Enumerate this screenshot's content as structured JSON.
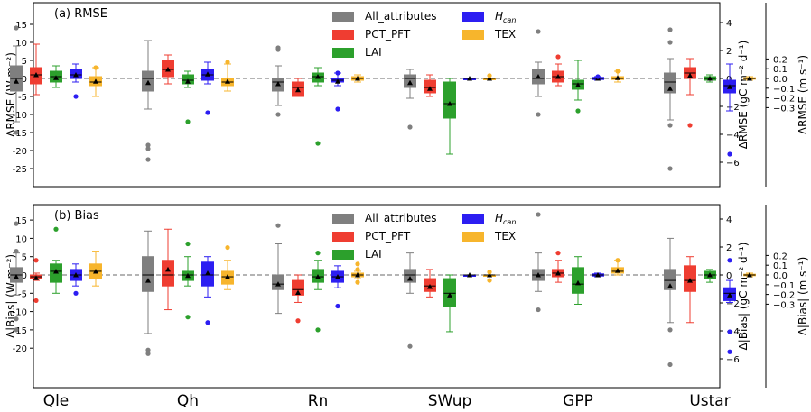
{
  "chart_data": [
    {
      "type": "box",
      "panel_title": "(a) RMSE",
      "ylabel": "ΔRMSE (W m⁻²)",
      "ylabel_right1": "ΔRMSE (gC m⁻² d⁻¹)",
      "ylabel_right2": "ΔRMSE (m s⁻¹)",
      "ylim": [
        -27.5,
        17
      ],
      "yticks": [
        "15",
        "10",
        "5",
        "0",
        "-5",
        "-10",
        "-15",
        "-20",
        "-25"
      ],
      "right1_ticks": [
        "4",
        "2",
        "0",
        "−2",
        "−4",
        "−6"
      ],
      "right2_ticks": [
        "0.2",
        "0.1",
        "0.0",
        "−0.1",
        "−0.2",
        "−0.3"
      ],
      "legend": {
        "placement": "top-center",
        "entries": [
          "All_attributes",
          "PCT_PFT",
          "LAI",
          "H_can",
          "TEX"
        ]
      },
      "series": [
        {
          "name": "All_attributes",
          "color": "#7f7f7f",
          "boxes": [
            {
              "category": "Qle",
              "q1": -3.5,
              "median": 0,
              "q3": 3.5,
              "wlo": -12,
              "whi": 9,
              "mean": -0.8,
              "outliers": [
                14,
                -15
              ]
            },
            {
              "category": "Qh",
              "q1": -3.5,
              "median": 0,
              "q3": 2,
              "wlo": -8.5,
              "whi": 10.5,
              "mean": -1.2,
              "outliers": [
                -18.5,
                -19.5,
                -22.5
              ]
            },
            {
              "category": "Rn",
              "q1": -3.5,
              "median": -1,
              "q3": 0,
              "wlo": -7.5,
              "whi": 3.5,
              "mean": -1.5,
              "outliers": [
                8.5,
                8,
                -10
              ]
            },
            {
              "category": "SWup",
              "q1": -2.5,
              "median": 0,
              "q3": 1,
              "wlo": -5.5,
              "whi": 2.5,
              "mean": -1.2,
              "outliers": [
                -13.5
              ]
            },
            {
              "category": "GPP",
              "q1": -1.5,
              "median": 0,
              "q3": 2.5,
              "wlo": -5,
              "whi": 4.5,
              "mean": 0.5,
              "outliers": [
                13,
                -10
              ]
            },
            {
              "category": "Ustar",
              "q1": -4,
              "median": -1,
              "q3": 1.5,
              "wlo": -11.5,
              "whi": 5.5,
              "mean": -2.8,
              "outliers": [
                13.5,
                10,
                -13,
                -25
              ]
            }
          ]
        },
        {
          "name": "PCT_PFT",
          "color": "#ef3d31",
          "boxes": [
            {
              "category": "Qle",
              "q1": -1.5,
              "median": 1,
              "q3": 3,
              "wlo": -4.5,
              "whi": 9.5,
              "mean": 1
            },
            {
              "category": "Qh",
              "q1": 0.5,
              "median": 2.5,
              "q3": 5,
              "wlo": -1.5,
              "whi": 6.5,
              "mean": 2.5
            },
            {
              "category": "Rn",
              "q1": -5,
              "median": -2.5,
              "q3": -1,
              "wlo": -5,
              "whi": 0,
              "mean": -3.2
            },
            {
              "category": "SWup",
              "q1": -4,
              "median": -2.5,
              "q3": -0.5,
              "wlo": -5,
              "whi": 1,
              "mean": -2.8
            },
            {
              "category": "GPP",
              "q1": -1,
              "median": 0.5,
              "q3": 2,
              "wlo": -2,
              "whi": 4,
              "mean": 0.5,
              "outliers": [
                6
              ]
            },
            {
              "category": "Ustar",
              "q1": 0,
              "median": 1.5,
              "q3": 3,
              "wlo": -4.5,
              "whi": 5.5,
              "mean": 0.8,
              "outliers": [
                -13
              ]
            }
          ]
        },
        {
          "name": "LAI",
          "color": "#2ca02c",
          "boxes": [
            {
              "category": "Qle",
              "q1": -1,
              "median": 0.5,
              "q3": 2,
              "wlo": -2.5,
              "whi": 3.5,
              "mean": 0.2
            },
            {
              "category": "Qh",
              "q1": -1.5,
              "median": -0.5,
              "q3": 1,
              "wlo": -2.5,
              "whi": 2,
              "mean": -0.8,
              "outliers": [
                -12
              ]
            },
            {
              "category": "Rn",
              "q1": -1,
              "median": 0.5,
              "q3": 1.5,
              "wlo": -2,
              "whi": 3,
              "mean": 0.5,
              "outliers": [
                -18
              ]
            },
            {
              "category": "SWup",
              "q1": -11,
              "median": -7,
              "q3": -1,
              "wlo": -21,
              "whi": 0,
              "mean": -7
            },
            {
              "category": "GPP",
              "q1": -3,
              "median": -1.5,
              "q3": -0.5,
              "wlo": -6,
              "whi": 5,
              "mean": -1.8,
              "outliers": [
                -9
              ]
            },
            {
              "category": "Ustar",
              "q1": -0.5,
              "median": 0,
              "q3": 0.5,
              "wlo": -1,
              "whi": 1,
              "mean": 0
            }
          ]
        },
        {
          "name": "H_can",
          "color": "#2c1ef2",
          "boxes": [
            {
              "category": "Qle",
              "q1": 0,
              "median": 1,
              "q3": 2.5,
              "wlo": -1,
              "whi": 4,
              "mean": 1,
              "outliers": [
                -5
              ]
            },
            {
              "category": "Qh",
              "q1": -0.5,
              "median": 1,
              "q3": 2.5,
              "wlo": -1.5,
              "whi": 4.5,
              "mean": 1.2,
              "outliers": [
                -9.5
              ]
            },
            {
              "category": "Rn",
              "q1": -1,
              "median": -0.5,
              "q3": 0,
              "wlo": -2,
              "whi": 1.5,
              "mean": -0.8,
              "outliers": [
                1.5,
                -8.5
              ]
            },
            {
              "category": "SWup",
              "q1": 0,
              "median": 0,
              "q3": 0,
              "wlo": 0,
              "whi": 0,
              "mean": 0
            },
            {
              "category": "GPP",
              "q1": -0.3,
              "median": 0,
              "q3": 0.3,
              "wlo": -0.5,
              "whi": 0.5,
              "mean": 0,
              "outliers": [
                0.5
              ]
            },
            {
              "category": "Ustar",
              "q1": -4,
              "median": -2,
              "q3": -0.5,
              "wlo": -9,
              "whi": 4,
              "mean": -2.3,
              "outliers": [
                -21
              ]
            }
          ]
        },
        {
          "name": "TEX",
          "color": "#f7b52c",
          "boxes": [
            {
              "category": "Qle",
              "q1": -2,
              "median": -1,
              "q3": 0.5,
              "wlo": -5,
              "whi": 3,
              "mean": -0.8,
              "outliers": [
                3
              ]
            },
            {
              "category": "Qh",
              "q1": -2,
              "median": -1,
              "q3": 0,
              "wlo": -3.5,
              "whi": 4,
              "mean": -0.8,
              "outliers": [
                4.5
              ]
            },
            {
              "category": "Rn",
              "q1": -0.5,
              "median": 0,
              "q3": 0.5,
              "wlo": -1,
              "whi": 1,
              "mean": 0
            },
            {
              "category": "SWup",
              "q1": 0,
              "median": 0,
              "q3": 0,
              "wlo": 0,
              "whi": 0,
              "mean": 0,
              "outliers": [
                0.8
              ]
            },
            {
              "category": "GPP",
              "q1": -0.3,
              "median": 0,
              "q3": 0.5,
              "wlo": -1,
              "whi": 2,
              "mean": 0.2,
              "outliers": [
                2
              ]
            },
            {
              "category": "Ustar",
              "q1": -0.2,
              "median": 0,
              "q3": 0.2,
              "wlo": -0.5,
              "whi": 0.5,
              "mean": 0
            }
          ]
        }
      ]
    },
    {
      "type": "box",
      "panel_title": "(b) Bias",
      "ylabel": "Δ|Bias| (W m⁻²)",
      "ylabel_right1": "Δ|Bias| (gC m⁻² d⁻¹)",
      "ylabel_right2": "Δ|Bias| (m s⁻¹)",
      "ylim": [
        -23.5,
        17
      ],
      "yticks": [
        "15",
        "10",
        "5",
        "0",
        "-5",
        "-10",
        "-15",
        "-20"
      ],
      "right1_ticks": [
        "4",
        "2",
        "0",
        "−2",
        "−4",
        "−6"
      ],
      "right2_ticks": [
        "0.2",
        "0.1",
        "0.0",
        "−0.1",
        "−0.2",
        "−0.3"
      ],
      "legend": {
        "placement": "top-center",
        "entries": [
          "All_attributes",
          "PCT_PFT",
          "LAI",
          "H_can",
          "TEX"
        ]
      },
      "series": [
        {
          "name": "All_attributes",
          "color": "#7f7f7f",
          "boxes": [
            {
              "category": "Qle",
              "q1": -2,
              "median": 0,
              "q3": 2,
              "wlo": -5.5,
              "whi": 6,
              "mean": -0.5,
              "outliers": [
                14,
                6.5,
                -12,
                -15
              ]
            },
            {
              "category": "Qh",
              "q1": -4.5,
              "median": 0,
              "q3": 5,
              "wlo": -16,
              "whi": 12,
              "mean": -1.5,
              "outliers": [
                -20.5,
                -21.5
              ]
            },
            {
              "category": "Rn",
              "q1": -4,
              "median": -2.5,
              "q3": 0,
              "wlo": -10.5,
              "whi": 8.5,
              "mean": -2.5,
              "outliers": [
                13.5
              ]
            },
            {
              "category": "SWup",
              "q1": -2,
              "median": 0,
              "q3": 1.5,
              "wlo": -5,
              "whi": 6,
              "mean": -1,
              "outliers": [
                -19.5
              ]
            },
            {
              "category": "GPP",
              "q1": -1.5,
              "median": 0,
              "q3": 1.5,
              "wlo": -4.5,
              "whi": 6,
              "mean": 0,
              "outliers": [
                16.5,
                -9.5
              ]
            },
            {
              "category": "Ustar",
              "q1": -4,
              "median": -1.5,
              "q3": 1.5,
              "wlo": -13,
              "whi": 10,
              "mean": -3,
              "outliers": [
                -15,
                -24.5
              ]
            }
          ]
        },
        {
          "name": "PCT_PFT",
          "color": "#ef3d31",
          "boxes": [
            {
              "category": "Qle",
              "q1": -1,
              "median": -0.5,
              "q3": 0,
              "wlo": -1.5,
              "whi": 0.5,
              "mean": -0.8,
              "outliers": [
                4,
                -7
              ]
            },
            {
              "category": "Qh",
              "q1": -3,
              "median": 0,
              "q3": 4,
              "wlo": -9.5,
              "whi": 12.5,
              "mean": 1.5
            },
            {
              "category": "Rn",
              "q1": -5.5,
              "median": -4,
              "q3": -1.5,
              "wlo": -7.5,
              "whi": 0,
              "mean": -4.8,
              "outliers": [
                -12.5
              ]
            },
            {
              "category": "SWup",
              "q1": -4.5,
              "median": -3,
              "q3": -1,
              "wlo": -6,
              "whi": 1.5,
              "mean": -3.2
            },
            {
              "category": "GPP",
              "q1": -0.5,
              "median": 0.5,
              "q3": 1.5,
              "wlo": -2,
              "whi": 4,
              "mean": 0.5,
              "outliers": [
                6
              ]
            },
            {
              "category": "Ustar",
              "q1": -4.5,
              "median": -1.5,
              "q3": 2.5,
              "wlo": -13,
              "whi": 5,
              "mean": -1.5
            }
          ]
        },
        {
          "name": "LAI",
          "color": "#2ca02c",
          "boxes": [
            {
              "category": "Qle",
              "q1": -2,
              "median": 1,
              "q3": 3,
              "wlo": -5,
              "whi": 4,
              "mean": 1,
              "outliers": [
                12.5
              ]
            },
            {
              "category": "Qh",
              "q1": -1.5,
              "median": 0,
              "q3": 1,
              "wlo": -3,
              "whi": 5,
              "mean": -0.2,
              "outliers": [
                8.5,
                -11.5
              ]
            },
            {
              "category": "Rn",
              "q1": -2,
              "median": -0.5,
              "q3": 1.5,
              "wlo": -4,
              "whi": 4,
              "mean": -0.5,
              "outliers": [
                6,
                -15
              ]
            },
            {
              "category": "SWup",
              "q1": -8.5,
              "median": -5,
              "q3": -1,
              "wlo": -15.5,
              "whi": 0,
              "mean": -5.5
            },
            {
              "category": "GPP",
              "q1": -5,
              "median": -2.5,
              "q3": 2,
              "wlo": -8,
              "whi": 5,
              "mean": -2.2
            },
            {
              "category": "Ustar",
              "q1": -1,
              "median": 0,
              "q3": 1,
              "wlo": -2,
              "whi": 1.5,
              "mean": 0
            }
          ]
        },
        {
          "name": "H_can",
          "color": "#2c1ef2",
          "boxes": [
            {
              "category": "Qle",
              "q1": -1.5,
              "median": 0,
              "q3": 1.5,
              "wlo": -3,
              "whi": 3,
              "mean": 0,
              "outliers": [
                -5
              ]
            },
            {
              "category": "Qh",
              "q1": -3,
              "median": 0,
              "q3": 3.5,
              "wlo": -6,
              "whi": 5,
              "mean": 0.5,
              "outliers": [
                -13
              ]
            },
            {
              "category": "Rn",
              "q1": -2,
              "median": -0.5,
              "q3": 1,
              "wlo": -3.5,
              "whi": 2.5,
              "mean": -0.5,
              "outliers": [
                -8.5
              ]
            },
            {
              "category": "SWup",
              "q1": 0,
              "median": 0,
              "q3": 0,
              "wlo": 0,
              "whi": 0,
              "mean": 0
            },
            {
              "category": "GPP",
              "q1": -0.3,
              "median": 0,
              "q3": 0.3,
              "wlo": -0.5,
              "whi": 0.5,
              "mean": 0
            },
            {
              "category": "Ustar",
              "q1": -7,
              "median": -5,
              "q3": -3.5,
              "wlo": -7.5,
              "whi": -1.5,
              "mean": -5.5,
              "outliers": [
                4,
                -15.5,
                -21
              ]
            }
          ]
        },
        {
          "name": "TEX",
          "color": "#f7b52c",
          "boxes": [
            {
              "category": "Qle",
              "q1": -1,
              "median": 1,
              "q3": 3,
              "wlo": -3,
              "whi": 6.5,
              "mean": 1
            },
            {
              "category": "Qh",
              "q1": -2.5,
              "median": -0.5,
              "q3": 1,
              "wlo": -4,
              "whi": 4,
              "mean": -0.5,
              "outliers": [
                7.5
              ]
            },
            {
              "category": "Rn",
              "q1": -0.5,
              "median": 0,
              "q3": 0.5,
              "wlo": -1,
              "whi": 1,
              "mean": 0,
              "outliers": [
                3,
                1.5,
                -2
              ]
            },
            {
              "category": "SWup",
              "q1": 0,
              "median": 0,
              "q3": 0,
              "wlo": 0,
              "whi": 0,
              "mean": 0,
              "outliers": [
                0.8,
                -1.5
              ]
            },
            {
              "category": "GPP",
              "q1": 0.5,
              "median": 1,
              "q3": 2,
              "wlo": 0,
              "whi": 4,
              "mean": 1.2,
              "outliers": [
                4
              ]
            },
            {
              "category": "Ustar",
              "q1": -0.2,
              "median": 0,
              "q3": 0.2,
              "wlo": -0.5,
              "whi": 0.5,
              "mean": 0
            }
          ]
        }
      ]
    }
  ],
  "categories": [
    "Qle",
    "Qh",
    "Rn",
    "SWup",
    "GPP",
    "Ustar"
  ],
  "legend_labels": {
    "all": "All_attributes",
    "pft": "PCT_PFT",
    "lai": "LAI",
    "hcan_main": "H",
    "hcan_sub": "can",
    "tex": "TEX"
  },
  "colors": {
    "all": "#7f7f7f",
    "pft": "#ef3d31",
    "lai": "#2ca02c",
    "hcan": "#2c1ef2",
    "tex": "#f7b52c",
    "zero_line": "#888888"
  }
}
